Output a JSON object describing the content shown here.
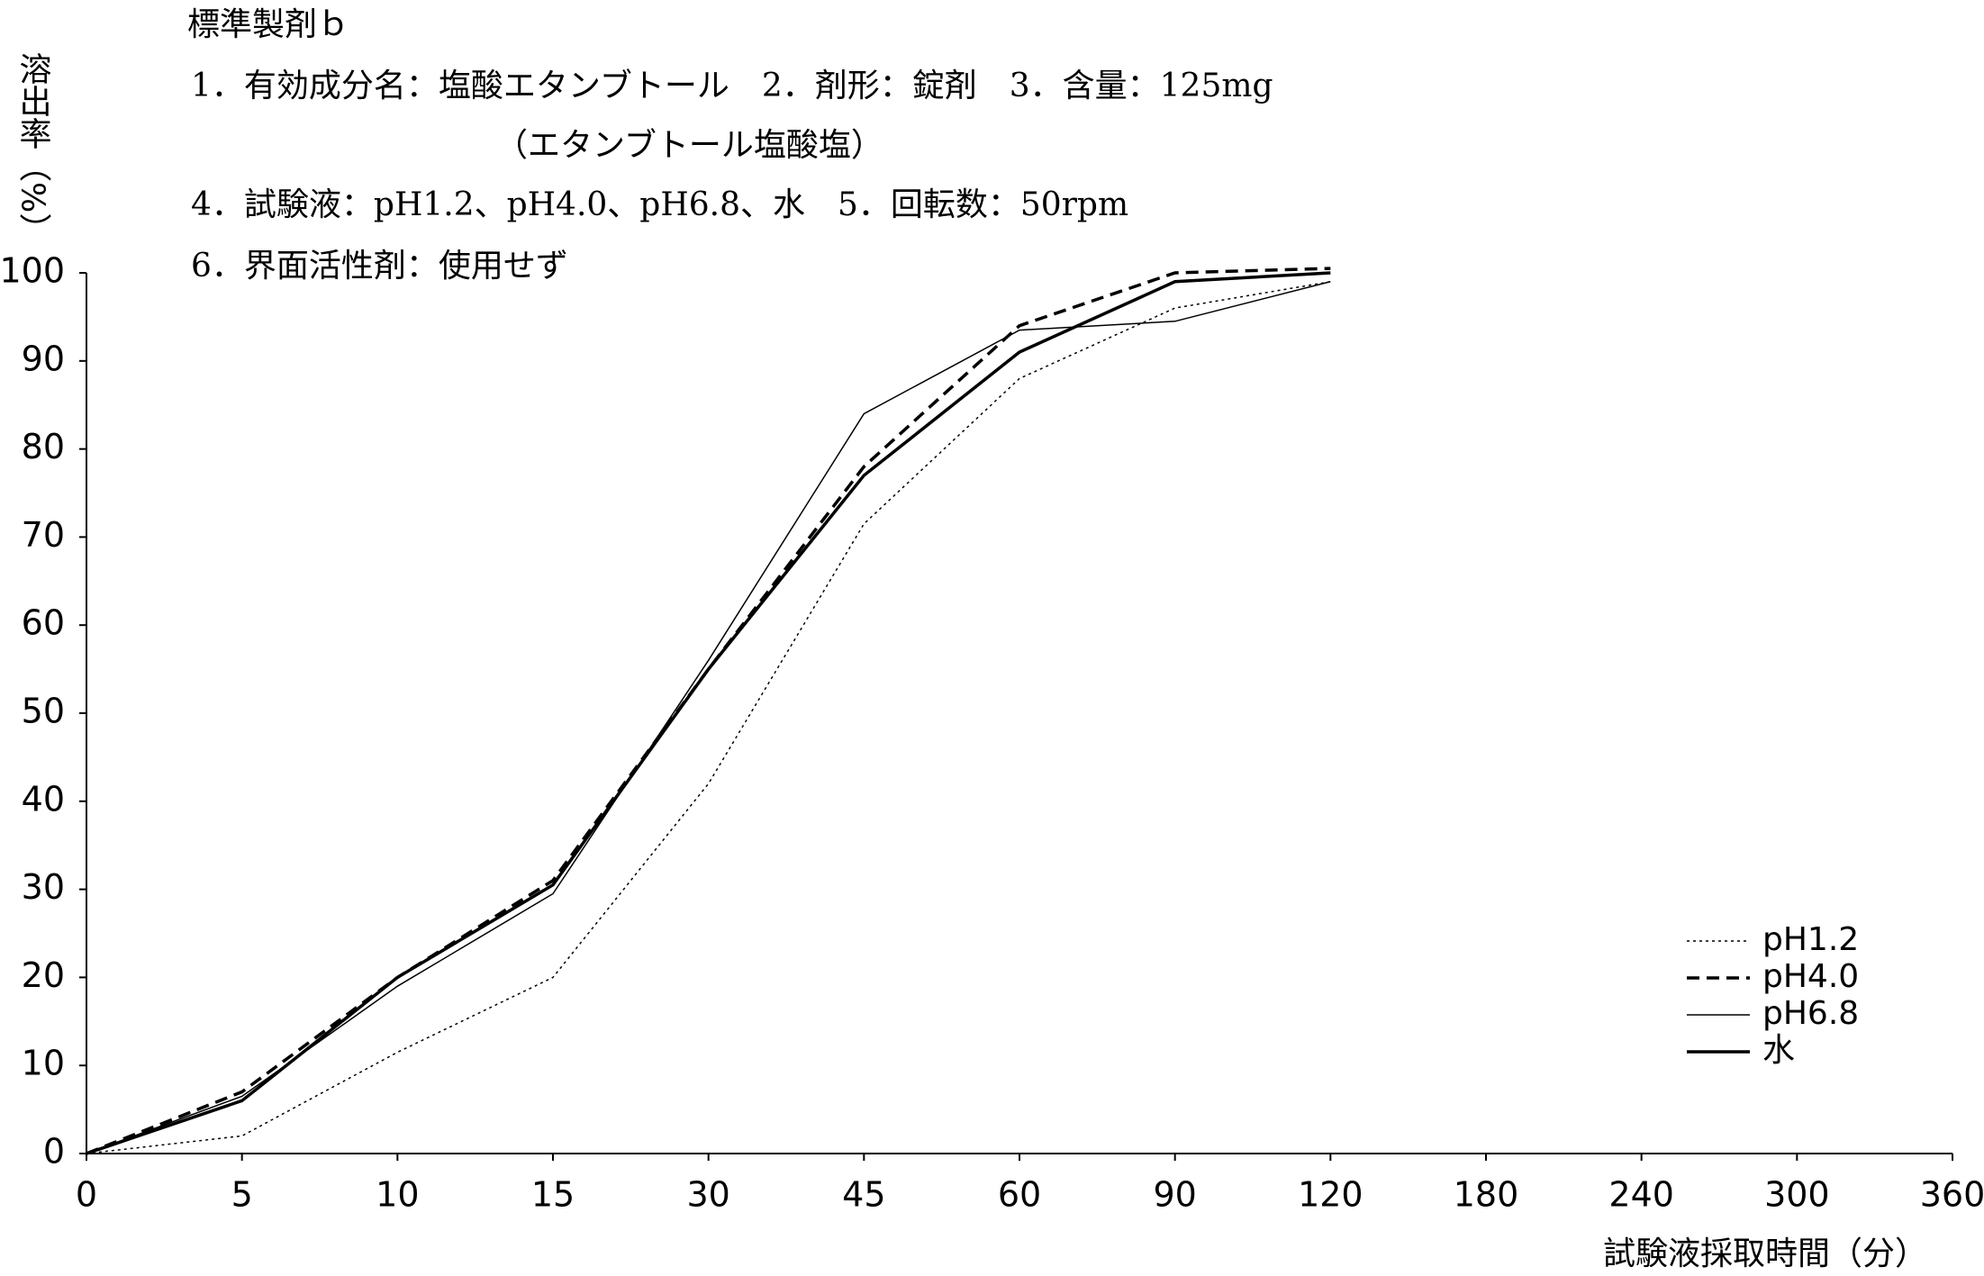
{
  "chart_data": {
    "type": "line",
    "title": "標準製剤ｂ",
    "annotations": [
      "1．有効成分名：塩酸エタンブトール　2．剤形：錠剤　3．含量：125mg",
      "（エタンブトール塩酸塩）",
      "4．試験液：pH1.2、pH4.0、pH6.8、水　5．回転数：50rpm",
      "6．界面活性剤：使用せず"
    ],
    "ylabel": "溶出率（%）",
    "xlabel": "試験液採取時間（分）",
    "categories": [
      "0",
      "5",
      "10",
      "15",
      "30",
      "45",
      "60",
      "90",
      "120",
      "180",
      "240",
      "300",
      "360"
    ],
    "series": [
      {
        "name": "pH1.2",
        "color": "#000000",
        "style": "dotted",
        "values": [
          0,
          2,
          11.5,
          20,
          42,
          71.5,
          88,
          96,
          99,
          null,
          null,
          null,
          null
        ]
      },
      {
        "name": "pH4.0",
        "color": "#000000",
        "style": "dashed",
        "values": [
          0,
          7,
          20,
          31,
          55,
          78,
          94,
          100,
          100.5,
          null,
          null,
          null,
          null
        ]
      },
      {
        "name": "pH6.8",
        "color": "#000000",
        "style": "thin",
        "values": [
          0,
          6.5,
          19,
          29.5,
          56,
          84,
          93.5,
          94.5,
          99,
          null,
          null,
          null,
          null
        ]
      },
      {
        "name": "水",
        "color": "#000000",
        "style": "thick",
        "values": [
          0,
          6,
          20,
          30.5,
          55,
          77,
          91,
          99,
          100,
          null,
          null,
          null,
          null
        ]
      }
    ],
    "ylim": [
      0,
      100
    ],
    "yticks": [
      0,
      10,
      20,
      30,
      40,
      50,
      60,
      70,
      80,
      90,
      100
    ],
    "legend": "right"
  }
}
